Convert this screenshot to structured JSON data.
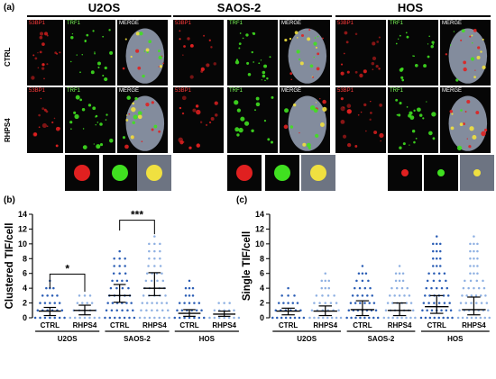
{
  "panels": {
    "a": "(a)",
    "b": "(b)",
    "c": "(c)"
  },
  "cell_lines": [
    "U2OS",
    "SAOS-2",
    "HOS"
  ],
  "conditions": [
    "CTRL",
    "RHPS4"
  ],
  "channels": {
    "red": "53BP1",
    "green": "TRF1",
    "merge": "MERGE"
  },
  "colors": {
    "ctrl_dots": "#2a5db5",
    "rhps4_dots": "#8eb0e2",
    "error_bars": "#000000",
    "significance": "#000000",
    "foci_red": "#e02020",
    "foci_green": "#40e020",
    "nucleus": "#9aa4b8"
  },
  "chart_data": [
    {
      "type": "scatter",
      "panel": "(b)",
      "ylabel": "Clustered TIF/cell",
      "ylim": [
        0,
        14
      ],
      "yticks": [
        0,
        2,
        4,
        6,
        8,
        10,
        12,
        14
      ],
      "categories": [
        "CTRL",
        "RHPS4",
        "CTRL",
        "RHPS4",
        "CTRL",
        "RHPS4"
      ],
      "groups": [
        "U2OS",
        "SAOS-2",
        "HOS"
      ],
      "series": [
        {
          "category": "CTRL",
          "group": "U2OS",
          "mean": 0.9,
          "sd_low": 0.3,
          "sd_high": 1.4,
          "max": 5,
          "dense_max": 3
        },
        {
          "category": "RHPS4",
          "group": "U2OS",
          "mean": 1.0,
          "sd_low": 0.4,
          "sd_high": 1.7,
          "max": 3,
          "dense_max": 3
        },
        {
          "category": "CTRL",
          "group": "SAOS-2",
          "mean": 3.0,
          "sd_low": 2.1,
          "sd_high": 4.5,
          "max": 9,
          "dense_max": 8
        },
        {
          "category": "RHPS4",
          "group": "SAOS-2",
          "mean": 4.0,
          "sd_low": 3.0,
          "sd_high": 6.1,
          "max": 11,
          "dense_max": 10
        },
        {
          "category": "CTRL",
          "group": "HOS",
          "mean": 0.6,
          "sd_low": 0.2,
          "sd_high": 1.1,
          "max": 5,
          "dense_max": 2
        },
        {
          "category": "RHPS4",
          "group": "HOS",
          "mean": 0.5,
          "sd_low": 0.2,
          "sd_high": 0.9,
          "max": 2,
          "dense_max": 2
        }
      ],
      "significance": [
        {
          "from": 0,
          "to": 1,
          "label": "*"
        },
        {
          "from": 2,
          "to": 3,
          "label": "***"
        }
      ]
    },
    {
      "type": "scatter",
      "panel": "(c)",
      "ylabel": "Single TIF/cell",
      "ylim": [
        0,
        14
      ],
      "yticks": [
        0,
        2,
        4,
        6,
        8,
        10,
        12,
        14
      ],
      "categories": [
        "CTRL",
        "RHPS4",
        "CTRL",
        "RHPS4",
        "CTRL",
        "RHPS4"
      ],
      "groups": [
        "U2OS",
        "SAOS-2",
        "HOS"
      ],
      "series": [
        {
          "category": "CTRL",
          "group": "U2OS",
          "mean": 0.9,
          "sd_low": 0.4,
          "sd_high": 1.3,
          "max": 4,
          "dense_max": 3
        },
        {
          "category": "RHPS4",
          "group": "U2OS",
          "mean": 0.9,
          "sd_low": 0.3,
          "sd_high": 1.6,
          "max": 6,
          "dense_max": 3
        },
        {
          "category": "CTRL",
          "group": "SAOS-2",
          "mean": 1.1,
          "sd_low": 0.3,
          "sd_high": 2.3,
          "max": 7,
          "dense_max": 5
        },
        {
          "category": "RHPS4",
          "group": "SAOS-2",
          "mean": 1.0,
          "sd_low": 0.3,
          "sd_high": 2.0,
          "max": 7,
          "dense_max": 4
        },
        {
          "category": "CTRL",
          "group": "HOS",
          "mean": 1.5,
          "sd_low": 0.6,
          "sd_high": 3.0,
          "max": 11,
          "dense_max": 6
        },
        {
          "category": "RHPS4",
          "group": "HOS",
          "mean": 1.1,
          "sd_low": 0.4,
          "sd_high": 2.8,
          "max": 11,
          "dense_max": 5
        }
      ]
    }
  ]
}
